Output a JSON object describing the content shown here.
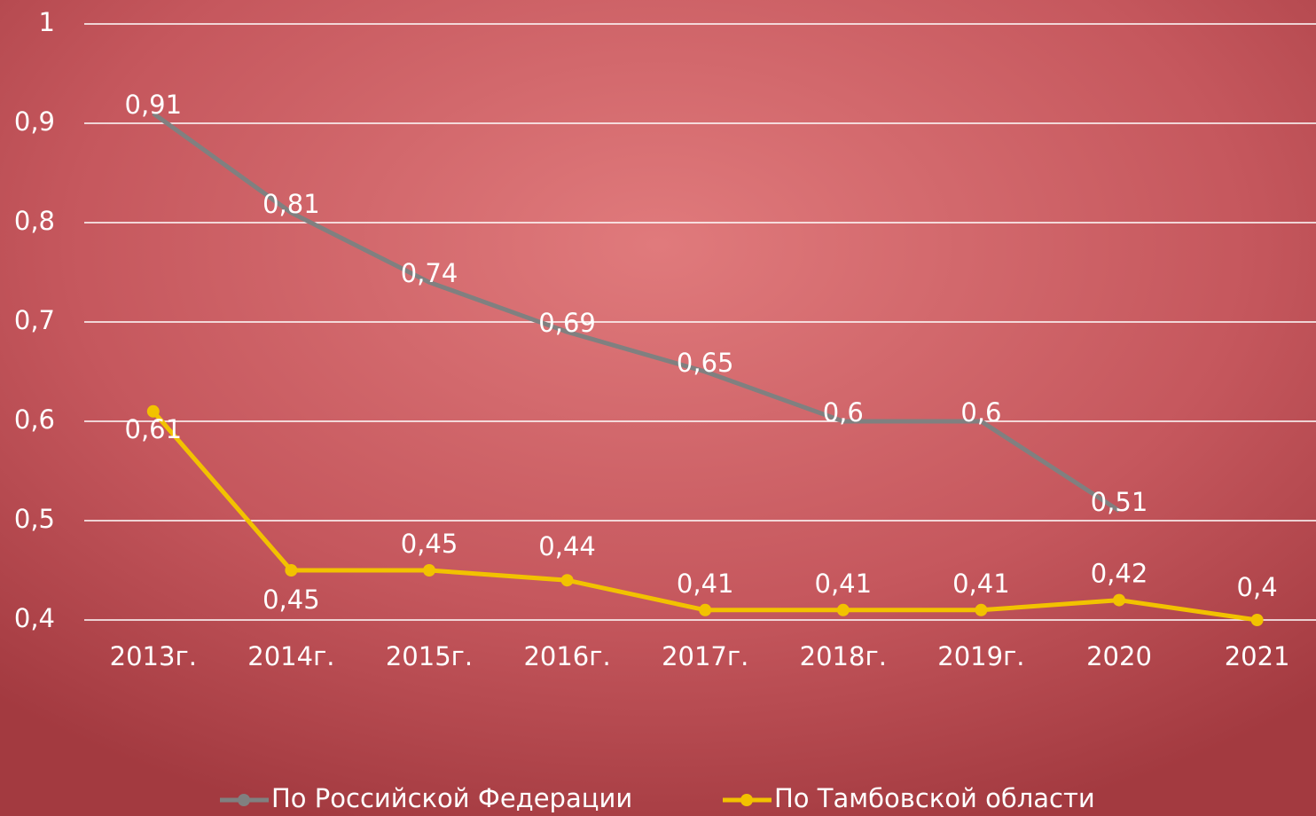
{
  "chart_data": {
    "type": "line",
    "categories": [
      "2013г.",
      "2014г.",
      "2015г.",
      "2016г.",
      "2017г.",
      "2018г.",
      "2019г.",
      "2020",
      "2021"
    ],
    "series": [
      {
        "name": "По Российской Федерации",
        "color": "#808080",
        "values": [
          0.91,
          0.81,
          0.74,
          0.69,
          0.65,
          0.6,
          0.6,
          0.51,
          null
        ],
        "value_labels": [
          "0,91",
          "0,81",
          "0,74",
          "0,69",
          "0,65",
          "0,6",
          "0,6",
          "0,51",
          null
        ]
      },
      {
        "name": "По Тамбовской области",
        "color": "#f2c200",
        "values": [
          0.61,
          0.45,
          0.45,
          0.44,
          0.41,
          0.41,
          0.41,
          0.42,
          0.4
        ],
        "value_labels": [
          "0,61",
          "0,45",
          "0,45",
          "0,44",
          "0,41",
          "0,41",
          "0,41",
          "0,42",
          "0,4"
        ]
      }
    ],
    "ylim": [
      0.4,
      1
    ],
    "yticks": [
      {
        "value": 0.4,
        "label": "0,4"
      },
      {
        "value": 0.5,
        "label": "0,5"
      },
      {
        "value": 0.6,
        "label": "0,6"
      },
      {
        "value": 0.7,
        "label": "0,7"
      },
      {
        "value": 0.8,
        "label": "0,8"
      },
      {
        "value": 0.9,
        "label": "0,9"
      },
      1
    ],
    "grid": true,
    "legend": "bottom"
  }
}
